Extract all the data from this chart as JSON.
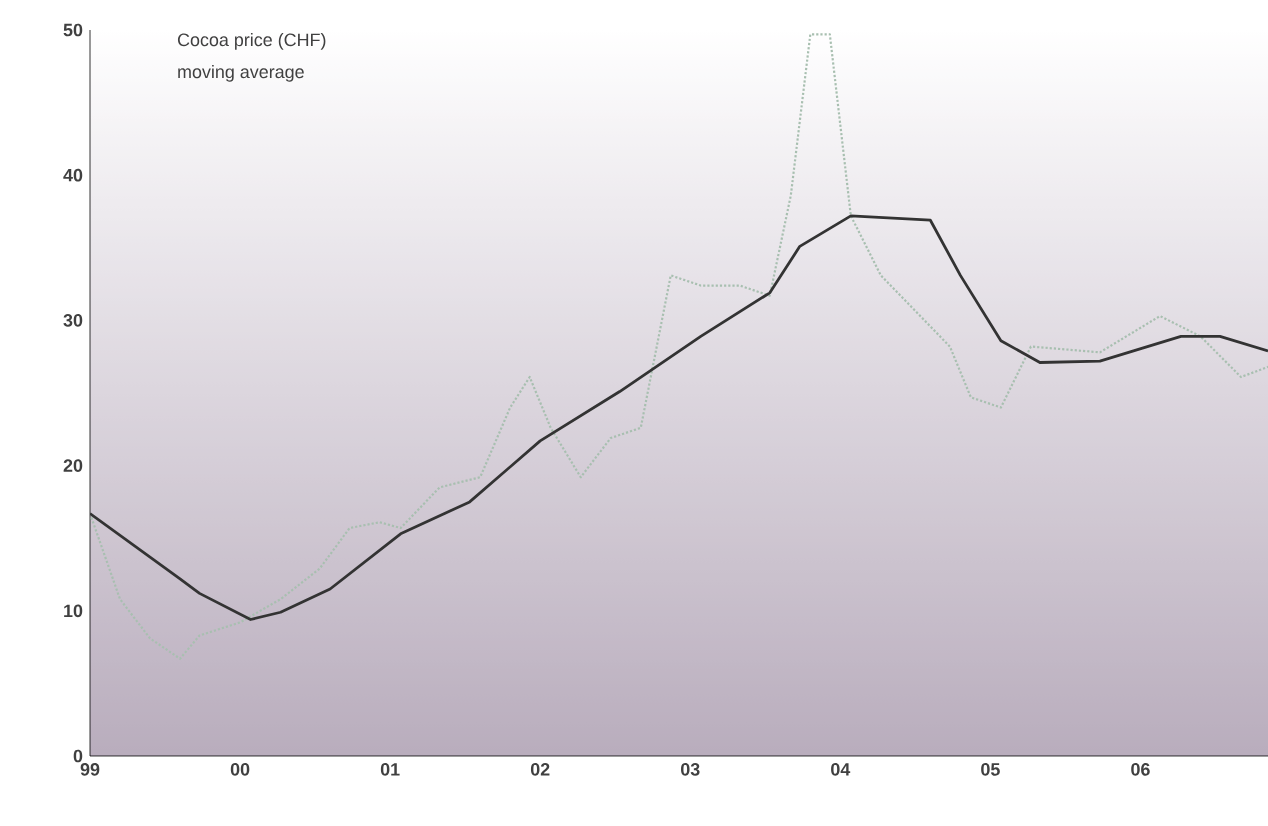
{
  "chart_data": {
    "type": "line",
    "title": "Cocoa price (CHF)",
    "subtitle": "moving average",
    "xlim": [
      1999,
      2006.85
    ],
    "ylim": [
      0,
      50
    ],
    "xticks": [
      {
        "value": 1999,
        "label": "99"
      },
      {
        "value": 2000,
        "label": "00"
      },
      {
        "value": 2001,
        "label": "01"
      },
      {
        "value": 2002,
        "label": "02"
      },
      {
        "value": 2003,
        "label": "03"
      },
      {
        "value": 2004,
        "label": "04"
      },
      {
        "value": 2005,
        "label": "05"
      },
      {
        "value": 2006,
        "label": "06"
      }
    ],
    "yticks": [
      0,
      10,
      20,
      30,
      40,
      50
    ],
    "grid": false,
    "marker": "none",
    "series": [
      {
        "color": "#a8bfb0",
        "line_style": "dotted",
        "x": [
          1999.0,
          1999.2,
          1999.4,
          1999.6,
          1999.73,
          2000.0,
          2000.27,
          2000.53,
          2000.73,
          2000.93,
          2001.07,
          2001.33,
          2001.6,
          2001.8,
          2001.93,
          2002.07,
          2002.27,
          2002.47,
          2002.67,
          2002.87,
          2003.07,
          2003.33,
          2003.53,
          2003.67,
          2003.8,
          2003.93,
          2004.07,
          2004.27,
          2004.73,
          2004.87,
          2005.07,
          2005.27,
          2005.73,
          2006.13,
          2006.4,
          2006.67,
          2006.85
        ],
        "values": [
          16.7,
          10.8,
          8.1,
          6.7,
          8.3,
          9.2,
          10.8,
          12.9,
          15.7,
          16.1,
          15.7,
          18.5,
          19.2,
          24,
          26.1,
          22.6,
          19.2,
          21.9,
          22.6,
          33.1,
          32.4,
          32.4,
          31.7,
          38.6,
          49.7,
          49.7,
          37.2,
          33.1,
          28.2,
          24.7,
          24,
          28.2,
          27.8,
          30.3,
          28.9,
          26.1,
          26.8
        ]
      },
      {
        "color": "#333333",
        "line_style": "solid",
        "x": [
          1999.0,
          1999.6,
          1999.73,
          2000.07,
          2000.27,
          2000.6,
          2001.07,
          2001.53,
          2002.0,
          2002.53,
          2003.07,
          2003.53,
          2003.73,
          2004.07,
          2004.6,
          2004.8,
          2005.07,
          2005.33,
          2005.73,
          2006.27,
          2006.53,
          2006.85
        ],
        "values": [
          16.7,
          12.2,
          11.2,
          9.4,
          9.9,
          11.5,
          15.3,
          17.5,
          21.7,
          25.1,
          28.9,
          31.9,
          35.1,
          37.2,
          36.9,
          33.1,
          28.6,
          27.1,
          27.2,
          28.9,
          28.9,
          27.9
        ]
      }
    ]
  }
}
